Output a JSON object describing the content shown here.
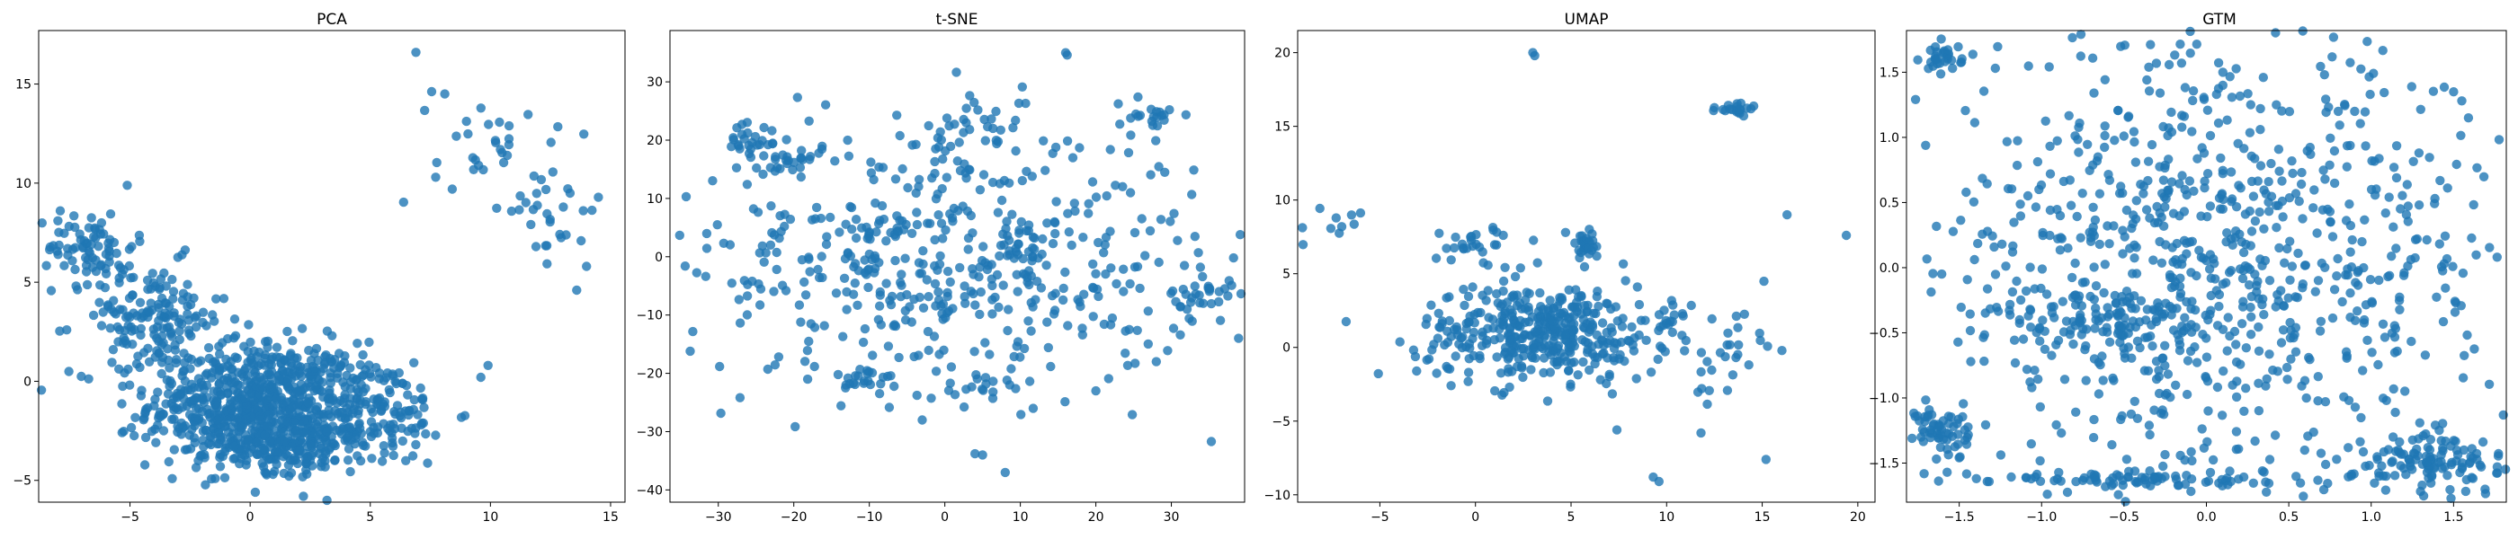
{
  "figure": {
    "point_color": "#1f77b4",
    "point_opacity": 0.8,
    "background": "#ffffff"
  },
  "chart_data": [
    {
      "type": "scatter",
      "title": "PCA",
      "xlabel": "",
      "ylabel": "",
      "xlim": [
        -8.8,
        15.6
      ],
      "ylim": [
        -6.1,
        17.7
      ],
      "xticks": [
        -5,
        0,
        5,
        10,
        15
      ],
      "yticks": [
        -5,
        0,
        5,
        10,
        15
      ],
      "grid": false,
      "clusters": [
        {
          "cx": 0.2,
          "cy": -1.2,
          "sx": 2.2,
          "sy": 1.6,
          "n": 700
        },
        {
          "cx": -4.2,
          "cy": 3.2,
          "sx": 1.6,
          "sy": 1.4,
          "n": 160
        },
        {
          "cx": -6.6,
          "cy": 6.8,
          "sx": 0.9,
          "sy": 0.9,
          "n": 70
        },
        {
          "cx": 4.8,
          "cy": -1.5,
          "sx": 1.8,
          "sy": 1.4,
          "n": 170
        },
        {
          "cx": 1.8,
          "cy": -3.2,
          "sx": 1.4,
          "sy": 0.7,
          "n": 140
        },
        {
          "cx": 9.6,
          "cy": 12.2,
          "sx": 1.0,
          "sy": 1.5,
          "n": 28
        },
        {
          "cx": 12.8,
          "cy": 8.6,
          "sx": 1.0,
          "sy": 1.5,
          "n": 32
        }
      ],
      "points": [
        [
          6.9,
          16.6
        ],
        [
          8.1,
          14.5
        ],
        [
          10.7,
          11.4
        ],
        [
          14.0,
          5.8
        ],
        [
          -7.9,
          8.6
        ],
        [
          -8.0,
          8.1
        ],
        [
          9.6,
          0.2
        ],
        [
          9.9,
          0.8
        ]
      ]
    },
    {
      "type": "scatter",
      "title": "t-SNE",
      "xlabel": "",
      "ylabel": "",
      "xlim": [
        -36.4,
        39.7
      ],
      "ylim": [
        -42.1,
        38.8
      ],
      "xticks": [
        -30,
        -20,
        -10,
        0,
        10,
        20,
        30
      ],
      "yticks": [
        -40,
        -30,
        -20,
        -10,
        0,
        10,
        20,
        30
      ],
      "grid": false,
      "clusters": [
        {
          "cx": 0,
          "cy": 0,
          "sx": 17,
          "sy": 11,
          "n": 520
        },
        {
          "cx": -26,
          "cy": 20,
          "sx": 2,
          "sy": 2,
          "n": 25
        },
        {
          "cx": -20,
          "cy": 16,
          "sx": 2,
          "sy": 2,
          "n": 18
        },
        {
          "cx": 4,
          "cy": 21,
          "sx": 3,
          "sy": 3,
          "n": 30
        },
        {
          "cx": 27,
          "cy": 24,
          "sx": 2,
          "sy": 1.2,
          "n": 20
        },
        {
          "cx": 34,
          "cy": -7,
          "sx": 2,
          "sy": 2,
          "n": 30
        },
        {
          "cx": -10,
          "cy": -21,
          "sx": 2,
          "sy": 1,
          "n": 20
        },
        {
          "cx": 6,
          "cy": -22,
          "sx": 2,
          "sy": 2,
          "n": 15
        }
      ],
      "points": [
        [
          16,
          35
        ],
        [
          16.2,
          34.6
        ],
        [
          5,
          -34
        ],
        [
          4,
          -33.8
        ],
        [
          8,
          -37
        ],
        [
          28,
          -18
        ],
        [
          20,
          -23
        ],
        [
          -3,
          -28
        ]
      ]
    },
    {
      "type": "scatter",
      "title": "UMAP",
      "xlabel": "",
      "ylabel": "",
      "xlim": [
        -9.3,
        20.9
      ],
      "ylim": [
        -10.5,
        21.5
      ],
      "xticks": [
        -5,
        0,
        5,
        10,
        15,
        20
      ],
      "yticks": [
        -10,
        -5,
        0,
        5,
        10,
        15,
        20
      ],
      "grid": false,
      "clusters": [
        {
          "cx": 3.5,
          "cy": 1.0,
          "sx": 3.2,
          "sy": 1.6,
          "n": 400
        },
        {
          "cx": 5.8,
          "cy": 7.0,
          "sx": 0.5,
          "sy": 0.5,
          "n": 30
        },
        {
          "cx": 0.2,
          "cy": 6.8,
          "sx": 1.2,
          "sy": 0.8,
          "n": 30
        },
        {
          "cx": 13.8,
          "cy": 16.2,
          "sx": 0.6,
          "sy": 0.2,
          "n": 20
        },
        {
          "cx": -7.2,
          "cy": 8.0,
          "sx": 0.6,
          "sy": 0.6,
          "n": 10
        },
        {
          "cx": 13.0,
          "cy": -0.5,
          "sx": 1.0,
          "sy": 1.6,
          "n": 25
        },
        {
          "cx": 10.0,
          "cy": 2.0,
          "sx": 0.5,
          "sy": 0.6,
          "n": 12
        }
      ],
      "points": [
        [
          3.0,
          20.0
        ],
        [
          3.1,
          19.8
        ],
        [
          19.4,
          7.6
        ],
        [
          16.3,
          9.0
        ],
        [
          15.2,
          -7.6
        ],
        [
          9.3,
          -8.8
        ],
        [
          9.6,
          -9.1
        ],
        [
          11.8,
          -5.8
        ],
        [
          7.4,
          -5.6
        ]
      ]
    },
    {
      "type": "scatter",
      "title": "GTM",
      "xlabel": "",
      "ylabel": "",
      "xlim": [
        -1.82,
        1.82
      ],
      "ylim": [
        -1.8,
        1.82
      ],
      "xticks": [
        -1.5,
        -1.0,
        -0.5,
        0.0,
        0.5,
        1.0,
        1.5
      ],
      "yticks": [
        -1.5,
        -1.0,
        -0.5,
        0.0,
        0.5,
        1.0,
        1.5
      ],
      "grid": false,
      "clusters": [
        {
          "cx": 0,
          "cy": 0,
          "sx": 0.95,
          "sy": 0.85,
          "n": 900
        },
        {
          "cx": -0.5,
          "cy": -1.62,
          "sx": 0.6,
          "sy": 0.03,
          "n": 80
        },
        {
          "cx": 1.4,
          "cy": -1.5,
          "sx": 0.25,
          "sy": 0.12,
          "n": 120
        },
        {
          "cx": -1.6,
          "cy": -1.25,
          "sx": 0.08,
          "sy": 0.12,
          "n": 60
        },
        {
          "cx": -1.6,
          "cy": 1.62,
          "sx": 0.06,
          "sy": 0.05,
          "n": 30
        },
        {
          "cx": -0.5,
          "cy": -0.4,
          "sx": 0.4,
          "sy": 0.1,
          "n": 90
        }
      ],
      "points": [
        [
          1.5,
          1.35
        ],
        [
          1.55,
          1.28
        ],
        [
          0.1,
          1.5
        ],
        [
          0.1,
          1.4
        ],
        [
          0.8,
          1.2
        ],
        [
          0.9,
          1.2
        ]
      ]
    }
  ]
}
